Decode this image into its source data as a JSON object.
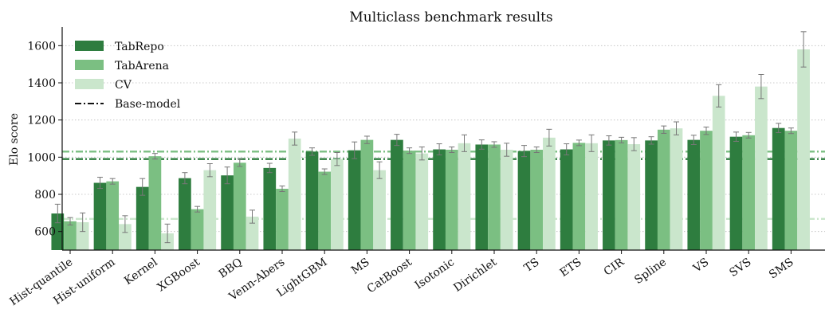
{
  "chart_data": {
    "type": "bar",
    "title": "Multiclass benchmark results",
    "xlabel": "",
    "ylabel": "Elo score",
    "ylim": [
      500,
      1700
    ],
    "yticks": [
      600,
      800,
      1000,
      1200,
      1400,
      1600
    ],
    "grid": "horizontal dotted",
    "legend_position": "top-left",
    "categories": [
      "Hist-quantile",
      "Hist-uniform",
      "Kernel",
      "XGBoost",
      "BBQ",
      "Venn-Abers",
      "LightGBM",
      "MS",
      "CatBoost",
      "Isotonic",
      "Dirichlet",
      "TS",
      "ETS",
      "CIR",
      "Spline",
      "VS",
      "SVS",
      "SMS"
    ],
    "series": [
      {
        "name": "TabRepo",
        "color": "#2e7d3f",
        "values": [
          697,
          862,
          840,
          887,
          902,
          942,
          1030,
          1037,
          1093,
          1042,
          1068,
          1033,
          1042,
          1090,
          1090,
          1093,
          1110,
          1157
        ],
        "errors": [
          50,
          30,
          45,
          30,
          45,
          25,
          20,
          45,
          30,
          30,
          25,
          30,
          30,
          25,
          20,
          25,
          25,
          25
        ]
      },
      {
        "name": "TabArena",
        "color": "#7bbf82",
        "values": [
          655,
          870,
          1005,
          720,
          970,
          830,
          922,
          1093,
          1035,
          1040,
          1068,
          1040,
          1077,
          1092,
          1148,
          1142,
          1118,
          1142
        ],
        "errors": [
          20,
          15,
          15,
          15,
          20,
          15,
          15,
          20,
          15,
          15,
          15,
          15,
          15,
          15,
          20,
          20,
          15,
          15
        ]
      },
      {
        "name": "CV",
        "color": "#cae6cc",
        "values": [
          650,
          640,
          590,
          930,
          680,
          1100,
          990,
          930,
          1020,
          1075,
          1040,
          1105,
          1075,
          1070,
          1155,
          1330,
          1380,
          1580
        ],
        "errors": [
          50,
          45,
          50,
          35,
          35,
          35,
          35,
          45,
          35,
          45,
          35,
          45,
          45,
          35,
          35,
          60,
          65,
          95
        ]
      }
    ],
    "base_model": {
      "name": "Base-model",
      "lines": [
        {
          "series": "TabRepo",
          "value": 990,
          "color": "#2e7d3f"
        },
        {
          "series": "TabArena",
          "value": 1030,
          "color": "#7bbf82"
        },
        {
          "series": "CV",
          "value": 668,
          "color": "#cae6cc"
        }
      ]
    }
  },
  "legend": {
    "items": [
      {
        "label": "TabRepo",
        "kind": "patch",
        "color": "#2e7d3f"
      },
      {
        "label": "TabArena",
        "kind": "patch",
        "color": "#7bbf82"
      },
      {
        "label": "CV",
        "kind": "patch",
        "color": "#cae6cc"
      },
      {
        "label": "Base-model",
        "kind": "dashdot",
        "color": "#111111"
      }
    ]
  }
}
